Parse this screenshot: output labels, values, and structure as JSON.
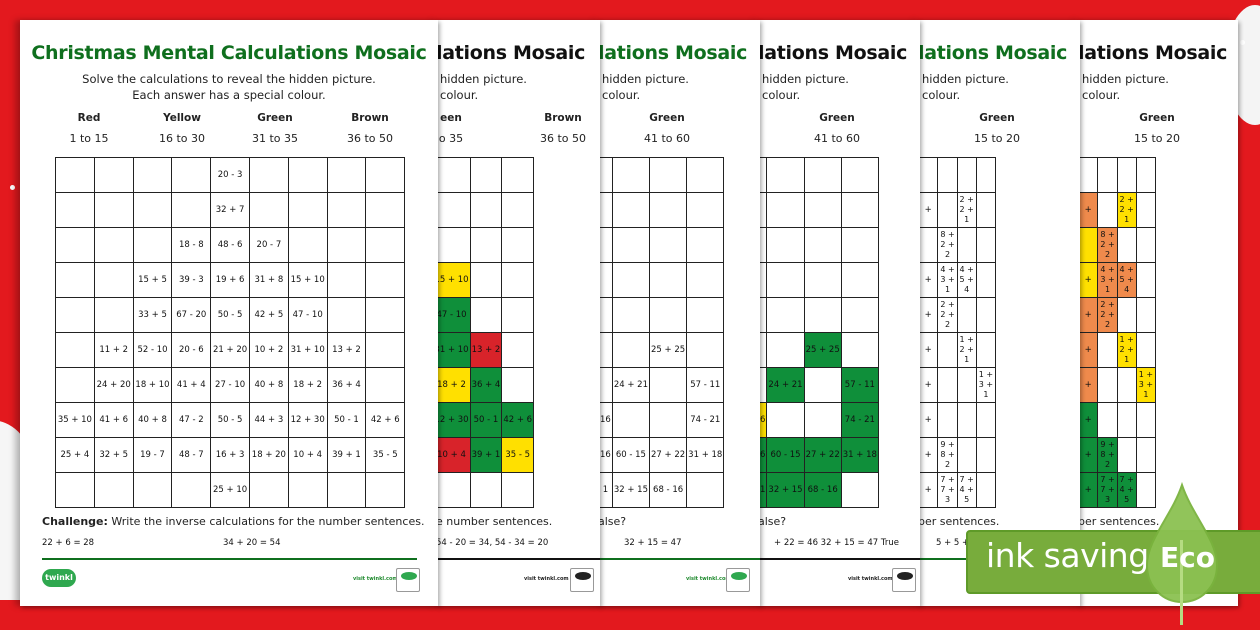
{
  "background": {
    "color": "#e3191e"
  },
  "title": "Christmas Mental Calculations Mosaic",
  "title_partial": "lations Mosaic",
  "subtitle_line1": "Solve the calculations to reveal the hidden picture.",
  "subtitle_line2": "Each answer has a special colour.",
  "subtitle_partial_line1": "hidden picture.",
  "subtitle_partial_line2": "colour.",
  "colors": {
    "red": "#d8232a",
    "yellow": "#ffe000",
    "green": "#0f8f3a",
    "brown_orange": "#ef8a4c",
    "title_green": "#0f6f1e",
    "eco_green": "#78ac3c"
  },
  "sheet1": {
    "legend": [
      {
        "name": "Red",
        "range": "1 to 15"
      },
      {
        "name": "Yellow",
        "range": "16 to 30"
      },
      {
        "name": "Green",
        "range": "31 to 35"
      },
      {
        "name": "Brown",
        "range": "36 to 50"
      }
    ],
    "grid": [
      [
        "",
        "",
        "",
        "",
        "20 - 3",
        "",
        "",
        "",
        ""
      ],
      [
        "",
        "",
        "",
        "",
        "32 + 7",
        "",
        "",
        "",
        ""
      ],
      [
        "",
        "",
        "",
        "18 - 8",
        "48 - 6",
        "20 - 7",
        "",
        "",
        ""
      ],
      [
        "",
        "",
        "15 + 5",
        "39 - 3",
        "19 + 6",
        "31 + 8",
        "15 + 10",
        "",
        ""
      ],
      [
        "",
        "",
        "33 + 5",
        "67 - 20",
        "50 - 5",
        "42 + 5",
        "47 - 10",
        "",
        ""
      ],
      [
        "",
        "11 + 2",
        "52 - 10",
        "20 - 6",
        "21 + 20",
        "10 + 2",
        "31 + 10",
        "13 + 2",
        ""
      ],
      [
        "",
        "24 + 20",
        "18 + 10",
        "41 + 4",
        "27 - 10",
        "40 + 8",
        "18 + 2",
        "36 + 4",
        ""
      ],
      [
        "35 + 10",
        "41 + 6",
        "40 + 8",
        "47 - 2",
        "50 - 5",
        "44 + 3",
        "12 + 30",
        "50 - 1",
        "42 + 6"
      ],
      [
        "25 + 4",
        "32 + 5",
        "19 - 7",
        "48 - 7",
        "16 + 3",
        "18 + 20",
        "10 + 4",
        "39 + 1",
        "35 - 5"
      ],
      [
        "",
        "",
        "",
        "",
        "25 + 10",
        "",
        "",
        "",
        ""
      ]
    ],
    "challenge_label": "Challenge:",
    "challenge_text": " Write the inverse calculations for the number sentences.",
    "sentence1": "22 + 6 = 28",
    "sentence2": "34 + 20 = 54",
    "visit": "visit twinkl.com",
    "logo": "twinkl"
  },
  "sheet2": {
    "legend": [
      {
        "name": "een",
        "range": "o 35"
      },
      {
        "name": "Brown",
        "range": "36 to 50"
      }
    ],
    "grid": [
      [
        "",
        "",
        "",
        ""
      ],
      [
        "",
        "",
        "",
        ""
      ],
      [
        "2",
        "",
        "",
        ""
      ],
      [
        "8",
        "15 + 10",
        "",
        ""
      ],
      [
        "5",
        "47 - 10",
        "",
        ""
      ],
      [
        "2",
        "31 + 10",
        "13 + 2",
        ""
      ],
      [
        "3",
        "18 + 2",
        "36 + 4",
        ""
      ],
      [
        "3",
        "12 + 30",
        "50 - 1",
        "42 + 6"
      ],
      [
        "0",
        "10 + 4",
        "39 + 1",
        "35 - 5"
      ],
      [
        "",
        "",
        "",
        ""
      ]
    ],
    "grid_colors": [
      [
        "",
        "",
        "",
        ""
      ],
      [
        "",
        "",
        "",
        ""
      ],
      [
        "red",
        "",
        "",
        ""
      ],
      [
        "green",
        "yellow",
        "",
        ""
      ],
      [
        "green",
        "green",
        "",
        ""
      ],
      [
        "red",
        "green",
        "red",
        ""
      ],
      [
        "green",
        "yellow",
        "green",
        ""
      ],
      [
        "green",
        "green",
        "green",
        "green"
      ],
      [
        "green",
        "red",
        "green",
        "yellow"
      ],
      [
        "",
        "",
        "",
        ""
      ]
    ],
    "challenge_text": "e number sentences.",
    "answers": "54 - 20 = 34, 54 - 34 = 20",
    "visit": "visit twinkl.com"
  },
  "sheet3": {
    "legend": [
      {
        "name": "Green",
        "range": "41 to 60"
      }
    ],
    "grid": [
      [
        "",
        "",
        "",
        ""
      ],
      [
        "",
        "",
        "",
        ""
      ],
      [
        "",
        "",
        "",
        ""
      ],
      [
        "",
        "",
        "",
        ""
      ],
      [
        "",
        "",
        "",
        ""
      ],
      [
        "",
        "",
        "25 + 25",
        ""
      ],
      [
        "",
        "24 + 21",
        "",
        "57 - 11"
      ],
      [
        "16",
        "",
        "",
        "74 - 21"
      ],
      [
        "16",
        "60 - 15",
        "27 + 22",
        "31 + 18"
      ],
      [
        "1",
        "32 + 15",
        "68 - 16",
        ""
      ]
    ],
    "question": "alse?",
    "answers": "32 + 15 = 47",
    "visit": "visit twinkl.com"
  },
  "sheet4": {
    "legend": [
      {
        "name": "Green",
        "range": "41 to 60"
      }
    ],
    "grid": [
      [
        "",
        "",
        "",
        ""
      ],
      [
        "",
        "",
        "",
        ""
      ],
      [
        "",
        "",
        "",
        ""
      ],
      [
        "",
        "",
        "",
        ""
      ],
      [
        "",
        "",
        "",
        ""
      ],
      [
        "",
        "",
        "25 + 25",
        ""
      ],
      [
        "",
        "24 + 21",
        "",
        "57 - 11"
      ],
      [
        "6",
        "",
        "",
        "74 - 21"
      ],
      [
        "6",
        "60 - 15",
        "27 + 22",
        "31 + 18"
      ],
      [
        "1",
        "32 + 15",
        "68 - 16",
        ""
      ]
    ],
    "grid_colors": [
      [
        "",
        "",
        "",
        ""
      ],
      [
        "",
        "",
        "",
        ""
      ],
      [
        "",
        "",
        "",
        ""
      ],
      [
        "",
        "",
        "",
        ""
      ],
      [
        "",
        "",
        "",
        ""
      ],
      [
        "",
        "",
        "green",
        ""
      ],
      [
        "",
        "green",
        "",
        "green"
      ],
      [
        "yellow",
        "",
        "",
        "green"
      ],
      [
        "green",
        "green",
        "green",
        "green"
      ],
      [
        "green",
        "green",
        "green",
        ""
      ]
    ],
    "question": "alse?",
    "answers": "+ 22 = 46    32 + 15 = 47 True",
    "visit": "visit twinkl.com"
  },
  "sheet5": {
    "legend": [
      {
        "name": "Green",
        "range": "15 to 20"
      }
    ],
    "grid": [
      [
        "",
        "",
        "",
        ""
      ],
      [
        "+",
        "",
        "2 + 2 + 1",
        ""
      ],
      [
        "",
        "8 + 2 + 2",
        "",
        ""
      ],
      [
        "+",
        "4 + 3 + 1",
        "4 + 5 + 4",
        ""
      ],
      [
        "+",
        "2 + 2 + 2",
        "",
        ""
      ],
      [
        "+",
        "",
        "1 + 2 + 1",
        ""
      ],
      [
        "+",
        "",
        "",
        "1 + 3 + 1"
      ],
      [
        "+",
        "",
        "",
        ""
      ],
      [
        "+",
        "9 + 8 + 2",
        "",
        ""
      ],
      [
        "+",
        "7 + 7 + 3",
        "7 + 4 + 5",
        ""
      ]
    ],
    "challenge_text": "per sentences.",
    "answers": "5 + 5 + 7",
    "visit": "visit twinkl.com"
  },
  "sheet6": {
    "legend": [
      {
        "name": "Green",
        "range": "15 to 20"
      }
    ],
    "grid": [
      [
        "",
        "",
        "",
        ""
      ],
      [
        "+",
        "",
        "2 + 2 + 1",
        ""
      ],
      [
        "",
        "8 + 2 + 2",
        "",
        ""
      ],
      [
        "+",
        "4 + 3 + 1",
        "4 + 5 + 4",
        ""
      ],
      [
        "+",
        "2 + 2 + 2",
        "",
        ""
      ],
      [
        "+",
        "",
        "1 + 2 + 1",
        ""
      ],
      [
        "+",
        "",
        "",
        "1 + 3 + 1"
      ],
      [
        "+",
        "",
        "",
        ""
      ],
      [
        "+",
        "9 + 8 + 2",
        "",
        ""
      ],
      [
        "+",
        "7 + 7 + 3",
        "7 + 4 + 5",
        ""
      ]
    ],
    "grid_colors": [
      [
        "",
        "",
        "",
        ""
      ],
      [
        "orange",
        "",
        "yellow",
        ""
      ],
      [
        "yellow",
        "orange",
        "",
        ""
      ],
      [
        "yellow",
        "orange",
        "orange",
        ""
      ],
      [
        "orange",
        "orange",
        "",
        ""
      ],
      [
        "orange",
        "",
        "yellow",
        ""
      ],
      [
        "orange",
        "",
        "",
        "yellow"
      ],
      [
        "green",
        "",
        "",
        ""
      ],
      [
        "green",
        "green",
        "",
        ""
      ],
      [
        "green",
        "green",
        "green",
        ""
      ]
    ],
    "challenge_text": "per sentences."
  },
  "eco_banner": {
    "text": "ink saving",
    "badge": "Eco"
  }
}
